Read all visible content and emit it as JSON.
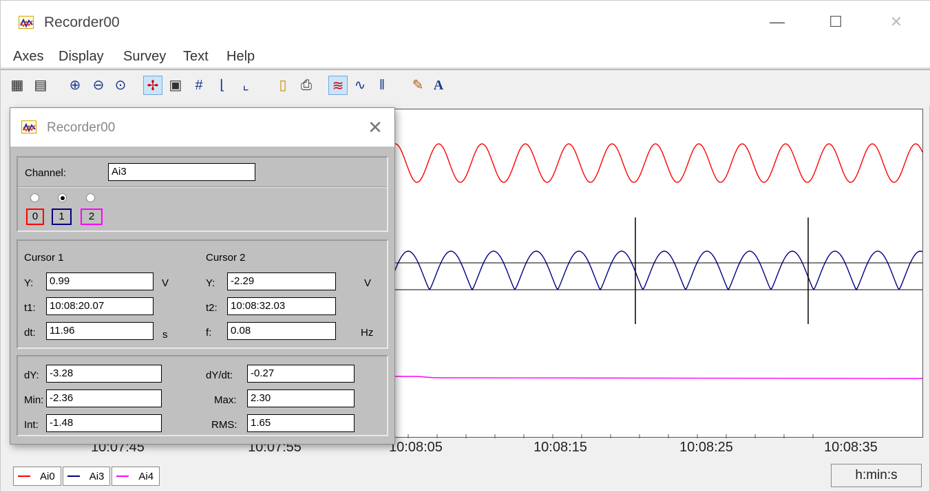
{
  "window": {
    "title": "Recorder00"
  },
  "menu": [
    "Axes",
    "Display",
    "Survey",
    "Text",
    "Help"
  ],
  "toolbar_icons": [
    "scale-x-icon",
    "scale-y-icon",
    "zoom-in-icon",
    "zoom-out-icon",
    "zoom-reset-icon",
    "cursor-icon",
    "save-icon",
    "grid-icon",
    "x-axis-icon",
    "y-axis-icon",
    "clipboard-icon",
    "print-icon",
    "signals-icon",
    "waveform-icon",
    "bars-icon",
    "brush-icon",
    "text-font-icon"
  ],
  "plot": {
    "x_ticks": [
      "10:07:45",
      "10:07:55",
      "10:08:05",
      "10:08:15",
      "10:08:25",
      "10:08:35"
    ],
    "x_unit": "h:min:s",
    "colors": {
      "Ai0": "#ff0000",
      "Ai3": "#000080",
      "Ai4": "#ff00ff"
    }
  },
  "legend": [
    {
      "name": "Ai0",
      "color": "#ff0000"
    },
    {
      "name": "Ai3",
      "color": "#000080"
    },
    {
      "name": "Ai4",
      "color": "#ff00ff"
    }
  ],
  "dialog": {
    "title": "Recorder00",
    "channel_label": "Channel:",
    "channel_value": "Ai3",
    "channels": [
      {
        "id": "0",
        "color": "#ff0000",
        "selected": false
      },
      {
        "id": "1",
        "color": "#000080",
        "selected": true
      },
      {
        "id": "2",
        "color": "#ff00ff",
        "selected": false
      }
    ],
    "cursor1": {
      "header": "Cursor 1",
      "y_label": "Y:",
      "y": "0.99",
      "y_unit": "V",
      "t_label": "t1:",
      "t": "10:08:20.07",
      "dt_label": "dt:",
      "dt": "11.96",
      "dt_unit": "s"
    },
    "cursor2": {
      "header": "Cursor 2",
      "y_label": "Y:",
      "y": "-2.29",
      "y_unit": "V",
      "t_label": "t2:",
      "t": "10:08:32.03",
      "f_label": "f:",
      "f": "0.08",
      "f_unit": "Hz"
    },
    "stats": {
      "dy_label": "dY:",
      "dy": "-3.28",
      "dydt_label": "dY/dt:",
      "dydt": "-0.27",
      "min_label": "Min:",
      "min": "-2.36",
      "max_label": "Max:",
      "max": "2.30",
      "int_label": "Int:",
      "int": "-1.48",
      "rms_label": "RMS:",
      "rms": "1.65"
    }
  }
}
